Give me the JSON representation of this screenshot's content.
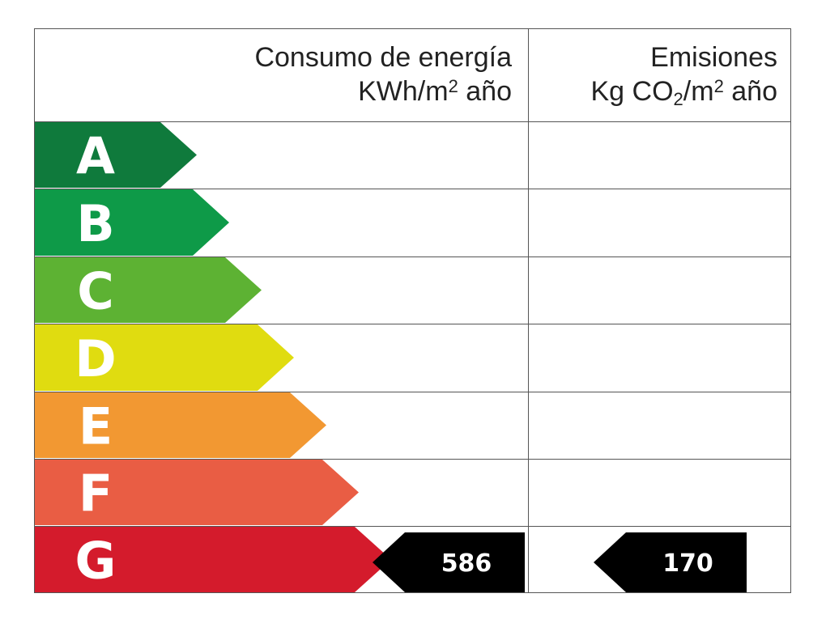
{
  "header": {
    "energy_line1": "Consumo de energía",
    "energy_line2_pre": "KWh/m",
    "energy_line2_sup": "2",
    "energy_line2_post": " año",
    "emissions_line1": "Emisiones",
    "emissions_line2_pre": "Kg CO",
    "emissions_line2_sub": "2",
    "emissions_line2_mid": "/m",
    "emissions_line2_sup": "2",
    "emissions_line2_post": " año"
  },
  "ratings": [
    {
      "letter": "A",
      "color": "#0f7a3c"
    },
    {
      "letter": "B",
      "color": "#0e9a48"
    },
    {
      "letter": "C",
      "color": "#5db233"
    },
    {
      "letter": "D",
      "color": "#e0dc10"
    },
    {
      "letter": "E",
      "color": "#f29832"
    },
    {
      "letter": "F",
      "color": "#e95d44"
    },
    {
      "letter": "G",
      "color": "#d41b2c"
    }
  ],
  "indicators": {
    "energy_value": "586",
    "emissions_value": "170",
    "rating_row": "G"
  }
}
